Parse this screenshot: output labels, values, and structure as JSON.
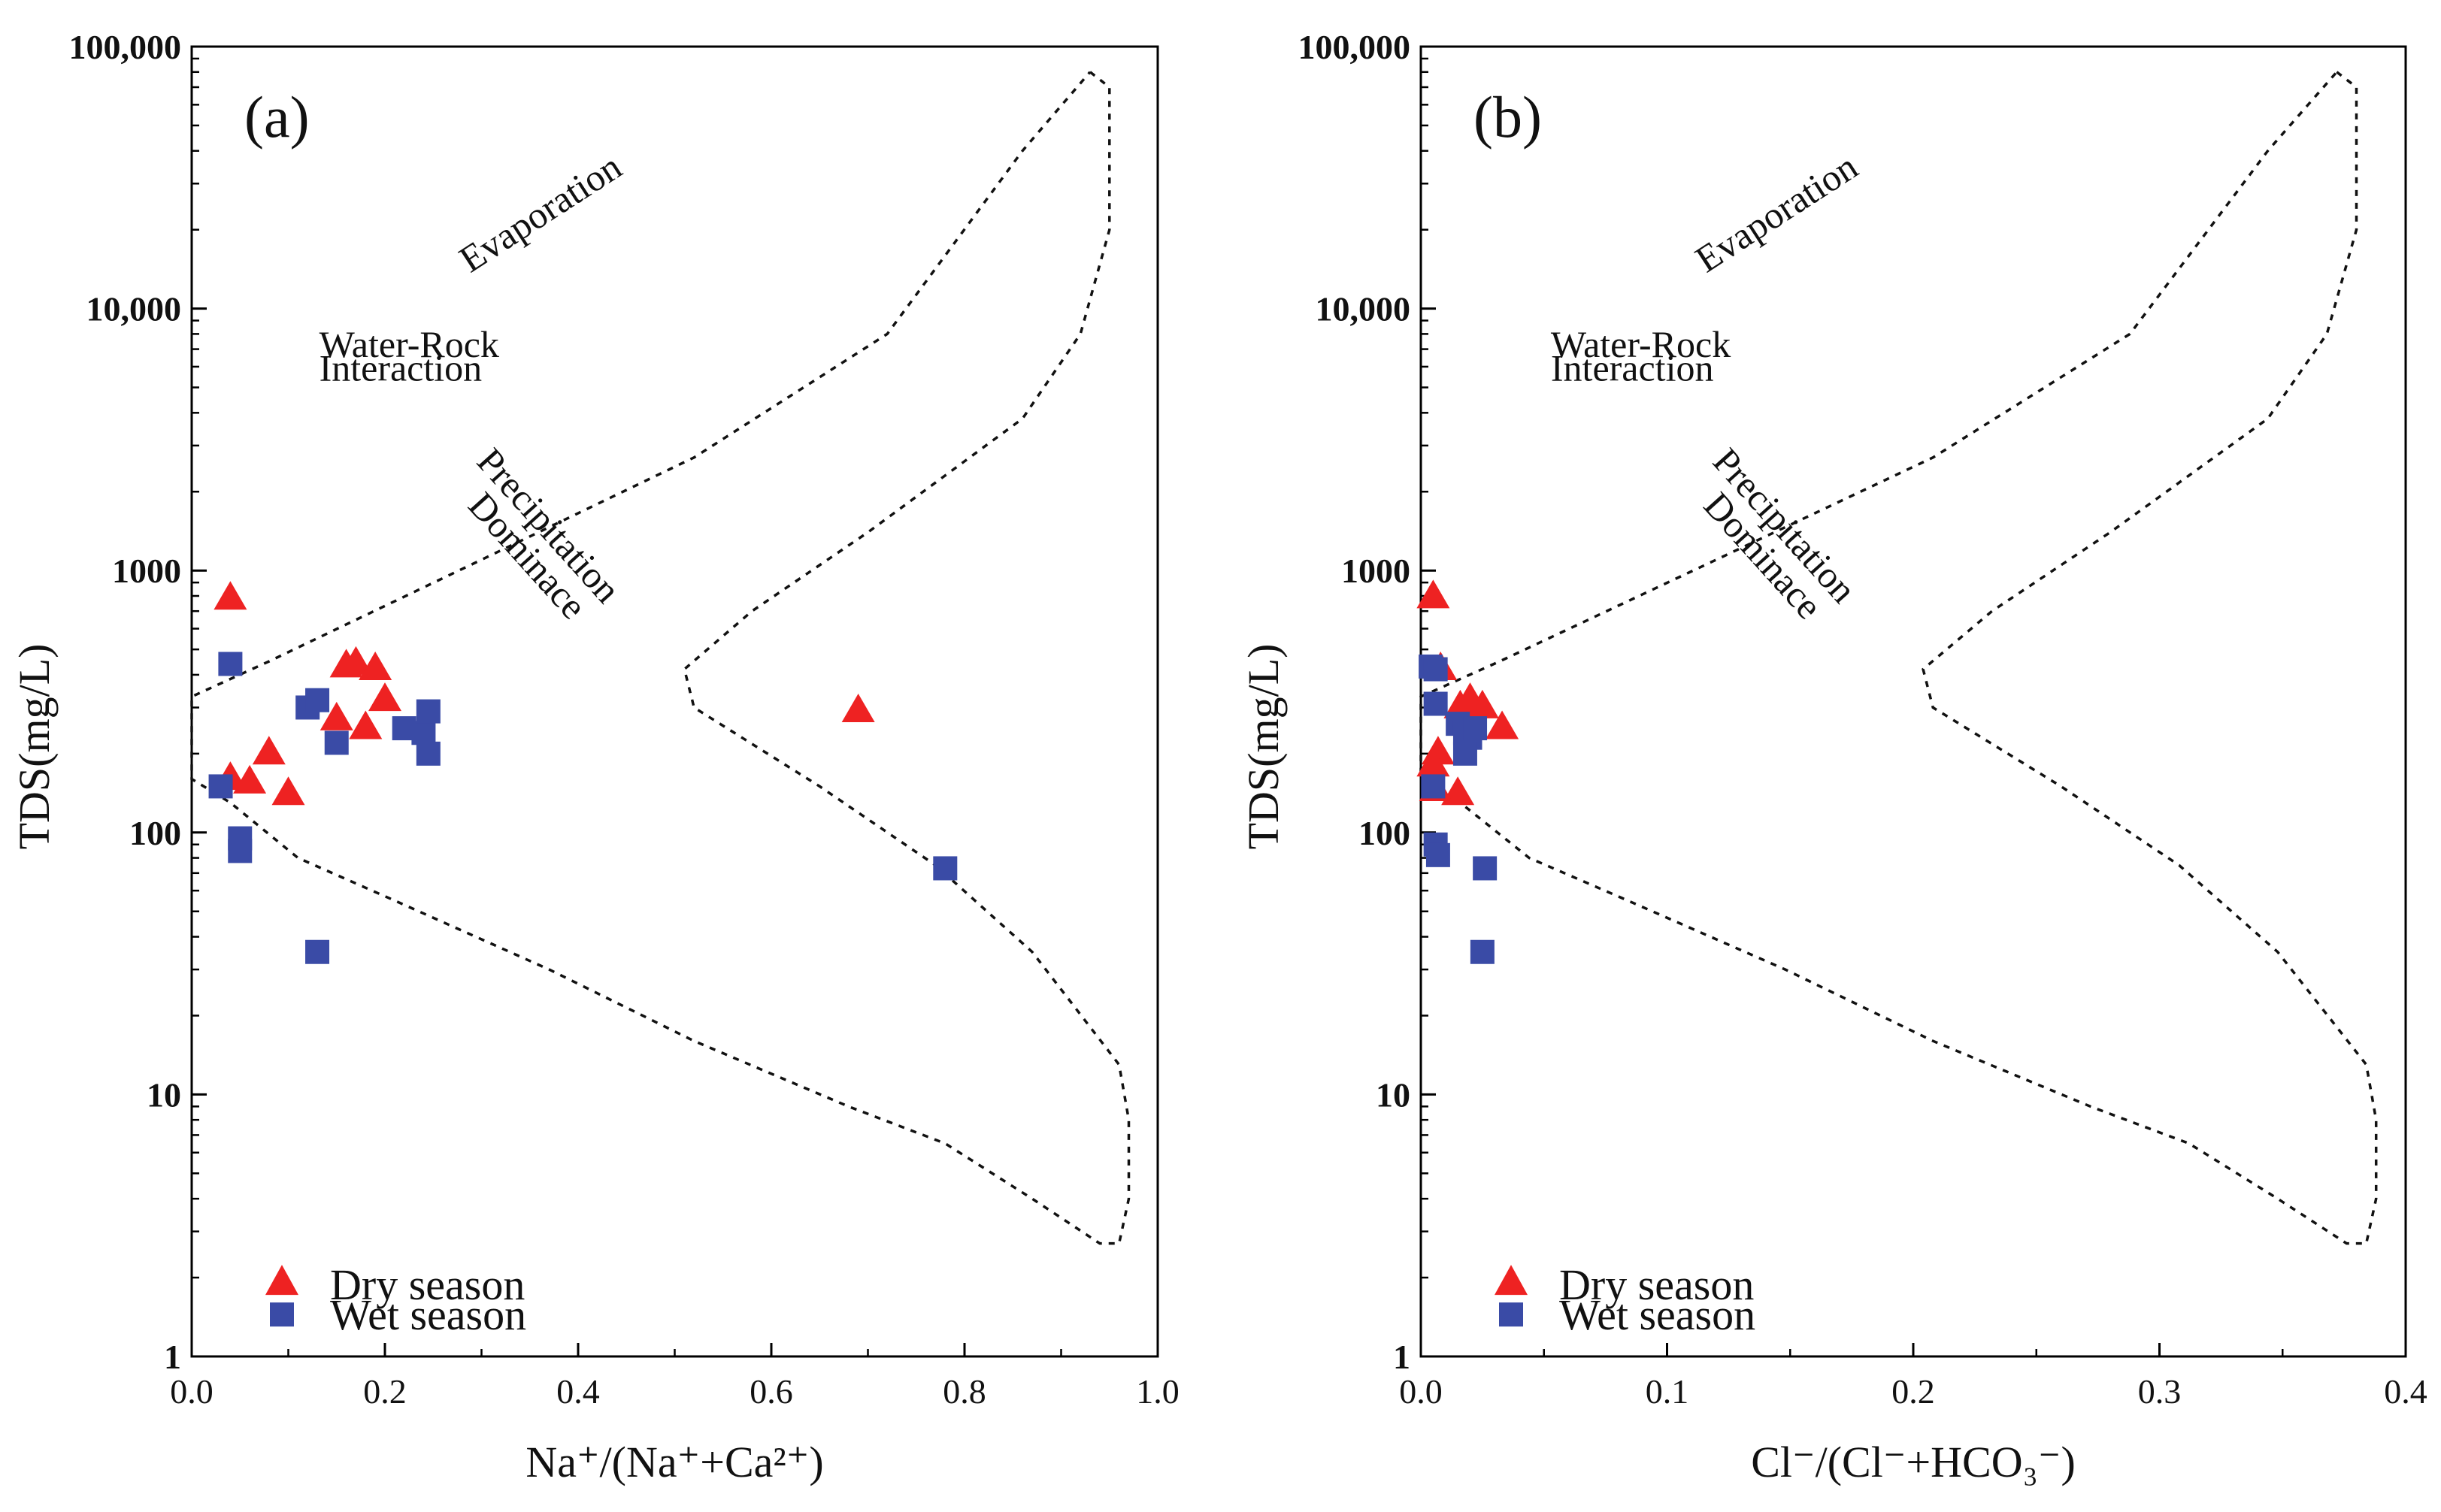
{
  "chart_data": [
    {
      "type": "scatter",
      "panel_label": "(a)",
      "xlabel": "Na⁺/(Na⁺+Ca²⁺)",
      "ylabel": "TDS(mg/L)",
      "xlim": [
        0,
        1
      ],
      "ylim": [
        1,
        100000
      ],
      "yscale": "log",
      "xticks": [
        "0.0",
        "0.2",
        "0.4",
        "0.6",
        "0.8",
        "1.0"
      ],
      "yticks": [
        "1",
        "10",
        "100",
        "1000",
        "10,000",
        "100,000"
      ],
      "regions": [
        "Evaporation",
        "Water-Rock",
        "Interaction",
        "Precipitation",
        "Dominace"
      ],
      "boundary": [
        [
          0.93,
          80000
        ],
        [
          0.95,
          70000
        ],
        [
          0.95,
          20000
        ],
        [
          0.92,
          8000
        ],
        [
          0.86,
          3800
        ],
        [
          0.7,
          1400
        ],
        [
          0.58,
          700
        ],
        [
          0.51,
          420
        ],
        [
          0.52,
          300
        ],
        [
          0.65,
          150
        ],
        [
          0.77,
          75
        ],
        [
          0.87,
          35
        ],
        [
          0.96,
          13
        ],
        [
          0.97,
          8
        ],
        [
          0.97,
          4
        ],
        [
          0.96,
          2.7
        ],
        [
          0.94,
          2.7
        ],
        [
          0.87,
          4
        ],
        [
          0.78,
          6.5
        ],
        [
          0.68,
          9
        ],
        [
          0.52,
          16
        ],
        [
          0.37,
          30
        ],
        [
          0.21,
          55
        ],
        [
          0.11,
          80
        ],
        [
          0.04,
          130
        ],
        [
          0.0,
          160
        ],
        [
          0.0,
          170
        ],
        [
          0.0,
          330
        ],
        [
          0.08,
          450
        ],
        [
          0.3,
          1100
        ],
        [
          0.52,
          2700
        ],
        [
          0.72,
          8000
        ],
        [
          0.86,
          40000
        ],
        [
          0.93,
          80000
        ]
      ],
      "series": [
        {
          "name": "Dry season",
          "marker": "triangle",
          "color": "#ee2222",
          "points": [
            [
              0.04,
              780
            ],
            [
              0.16,
              430
            ],
            [
              0.17,
              440
            ],
            [
              0.19,
              420
            ],
            [
              0.2,
              320
            ],
            [
              0.15,
              270
            ],
            [
              0.18,
              250
            ],
            [
              0.08,
              200
            ],
            [
              0.04,
              160
            ],
            [
              0.06,
              155
            ],
            [
              0.1,
              140
            ],
            [
              0.69,
              290
            ]
          ]
        },
        {
          "name": "Wet season",
          "marker": "square",
          "color": "#3a4ba6",
          "points": [
            [
              0.04,
              440
            ],
            [
              0.12,
              300
            ],
            [
              0.13,
              320
            ],
            [
              0.15,
              220
            ],
            [
              0.22,
              250
            ],
            [
              0.24,
              240
            ],
            [
              0.245,
              290
            ],
            [
              0.245,
              200
            ],
            [
              0.03,
              150
            ],
            [
              0.05,
              85
            ],
            [
              0.05,
              95
            ],
            [
              0.13,
              35
            ],
            [
              0.78,
              73
            ]
          ]
        }
      ],
      "legend": [
        "Dry season",
        "Wet season"
      ],
      "legend_position": "bottom-left"
    },
    {
      "type": "scatter",
      "panel_label": "(b)",
      "xlabel": "Cl⁻/(Cl⁻+HCO₃⁻)",
      "ylabel": "TDS(mg/L)",
      "xlim": [
        0,
        0.4
      ],
      "ylim": [
        1,
        100000
      ],
      "yscale": "log",
      "xticks": [
        "0.0",
        "0.1",
        "0.2",
        "0.3",
        "0.4"
      ],
      "yticks": [
        "1",
        "10",
        "100",
        "1000",
        "10,000",
        "100,000"
      ],
      "regions": [
        "Evaporation",
        "Water-Rock",
        "Interaction",
        "Precipitation",
        "Dominace"
      ],
      "boundary": [
        [
          0.372,
          80000
        ],
        [
          0.38,
          70000
        ],
        [
          0.38,
          20000
        ],
        [
          0.368,
          8000
        ],
        [
          0.344,
          3800
        ],
        [
          0.28,
          1400
        ],
        [
          0.232,
          700
        ],
        [
          0.204,
          420
        ],
        [
          0.208,
          300
        ],
        [
          0.26,
          150
        ],
        [
          0.308,
          75
        ],
        [
          0.348,
          35
        ],
        [
          0.384,
          13
        ],
        [
          0.388,
          8
        ],
        [
          0.388,
          4
        ],
        [
          0.384,
          2.7
        ],
        [
          0.376,
          2.7
        ],
        [
          0.348,
          4
        ],
        [
          0.312,
          6.5
        ],
        [
          0.272,
          9
        ],
        [
          0.208,
          16
        ],
        [
          0.148,
          30
        ],
        [
          0.084,
          55
        ],
        [
          0.044,
          80
        ],
        [
          0.016,
          130
        ],
        [
          0.0,
          160
        ],
        [
          0.0,
          170
        ],
        [
          0.0,
          330
        ],
        [
          0.032,
          450
        ],
        [
          0.12,
          1100
        ],
        [
          0.208,
          2700
        ],
        [
          0.288,
          8000
        ],
        [
          0.344,
          40000
        ],
        [
          0.372,
          80000
        ]
      ],
      "series": [
        {
          "name": "Dry season",
          "marker": "triangle",
          "color": "#ee2222",
          "points": [
            [
              0.005,
              790
            ],
            [
              0.008,
              420
            ],
            [
              0.016,
              300
            ],
            [
              0.02,
              320
            ],
            [
              0.025,
              300
            ],
            [
              0.033,
              250
            ],
            [
              0.007,
              200
            ],
            [
              0.005,
              180
            ],
            [
              0.015,
              140
            ],
            [
              0.006,
              145
            ]
          ]
        },
        {
          "name": "Wet season",
          "marker": "square",
          "color": "#3a4ba6",
          "points": [
            [
              0.004,
              430
            ],
            [
              0.006,
              420
            ],
            [
              0.006,
              310
            ],
            [
              0.015,
              260
            ],
            [
              0.018,
              240
            ],
            [
              0.02,
              230
            ],
            [
              0.022,
              250
            ],
            [
              0.018,
              200
            ],
            [
              0.005,
              150
            ],
            [
              0.006,
              90
            ],
            [
              0.007,
              82
            ],
            [
              0.026,
              73
            ],
            [
              0.025,
              35
            ]
          ]
        }
      ],
      "legend": [
        "Dry season",
        "Wet season"
      ],
      "legend_position": "bottom-left"
    }
  ]
}
